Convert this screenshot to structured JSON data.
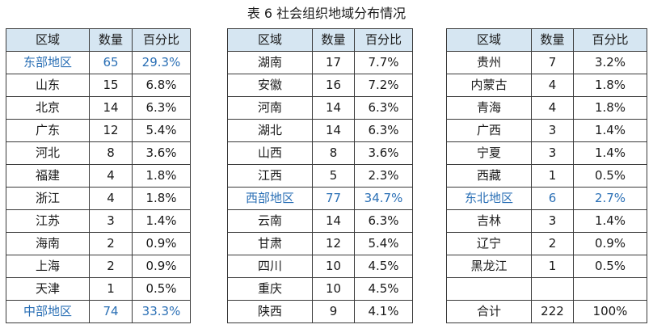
{
  "caption": "表 6 社会组织地域分布情况",
  "headers": [
    "区域",
    "数量",
    "百分比"
  ],
  "tables": [
    {
      "rows": [
        {
          "region": "东部地区",
          "count": "65",
          "percent": "29.3%",
          "highlight": true
        },
        {
          "region": "山东",
          "count": "15",
          "percent": "6.8%",
          "highlight": false
        },
        {
          "region": "北京",
          "count": "14",
          "percent": "6.3%",
          "highlight": false
        },
        {
          "region": "广东",
          "count": "12",
          "percent": "5.4%",
          "highlight": false
        },
        {
          "region": "河北",
          "count": "8",
          "percent": "3.6%",
          "highlight": false
        },
        {
          "region": "福建",
          "count": "4",
          "percent": "1.8%",
          "highlight": false
        },
        {
          "region": "浙江",
          "count": "4",
          "percent": "1.8%",
          "highlight": false
        },
        {
          "region": "江苏",
          "count": "3",
          "percent": "1.4%",
          "highlight": false
        },
        {
          "region": "海南",
          "count": "2",
          "percent": "0.9%",
          "highlight": false
        },
        {
          "region": "上海",
          "count": "2",
          "percent": "0.9%",
          "highlight": false
        },
        {
          "region": "天津",
          "count": "1",
          "percent": "0.5%",
          "highlight": false
        },
        {
          "region": "中部地区",
          "count": "74",
          "percent": "33.3%",
          "highlight": true
        }
      ]
    },
    {
      "rows": [
        {
          "region": "湖南",
          "count": "17",
          "percent": "7.7%",
          "highlight": false
        },
        {
          "region": "安徽",
          "count": "16",
          "percent": "7.2%",
          "highlight": false
        },
        {
          "region": "河南",
          "count": "14",
          "percent": "6.3%",
          "highlight": false
        },
        {
          "region": "湖北",
          "count": "14",
          "percent": "6.3%",
          "highlight": false
        },
        {
          "region": "山西",
          "count": "8",
          "percent": "3.6%",
          "highlight": false
        },
        {
          "region": "江西",
          "count": "5",
          "percent": "2.3%",
          "highlight": false
        },
        {
          "region": "西部地区",
          "count": "77",
          "percent": "34.7%",
          "highlight": true
        },
        {
          "region": "云南",
          "count": "14",
          "percent": "6.3%",
          "highlight": false
        },
        {
          "region": "甘肃",
          "count": "12",
          "percent": "5.4%",
          "highlight": false
        },
        {
          "region": "四川",
          "count": "10",
          "percent": "4.5%",
          "highlight": false
        },
        {
          "region": "重庆",
          "count": "10",
          "percent": "4.5%",
          "highlight": false
        },
        {
          "region": "陕西",
          "count": "9",
          "percent": "4.1%",
          "highlight": false
        }
      ]
    },
    {
      "rows": [
        {
          "region": "贵州",
          "count": "7",
          "percent": "3.2%",
          "highlight": false
        },
        {
          "region": "内蒙古",
          "count": "4",
          "percent": "1.8%",
          "highlight": false
        },
        {
          "region": "青海",
          "count": "4",
          "percent": "1.8%",
          "highlight": false
        },
        {
          "region": "广西",
          "count": "3",
          "percent": "1.4%",
          "highlight": false
        },
        {
          "region": "宁夏",
          "count": "3",
          "percent": "1.4%",
          "highlight": false
        },
        {
          "region": "西藏",
          "count": "1",
          "percent": "0.5%",
          "highlight": false
        },
        {
          "region": "东北地区",
          "count": "6",
          "percent": "2.7%",
          "highlight": true
        },
        {
          "region": "吉林",
          "count": "3",
          "percent": "1.4%",
          "highlight": false
        },
        {
          "region": "辽宁",
          "count": "2",
          "percent": "0.9%",
          "highlight": false
        },
        {
          "region": "黑龙江",
          "count": "1",
          "percent": "0.5%",
          "highlight": false
        },
        {
          "region": "",
          "count": "",
          "percent": "",
          "highlight": false
        },
        {
          "region": "合计",
          "count": "222",
          "percent": "100%",
          "highlight": false
        }
      ]
    }
  ],
  "colors": {
    "header_bg": "#d6e6f2",
    "highlight_text": "#2a6fb5",
    "border": "#3a3a3a"
  }
}
